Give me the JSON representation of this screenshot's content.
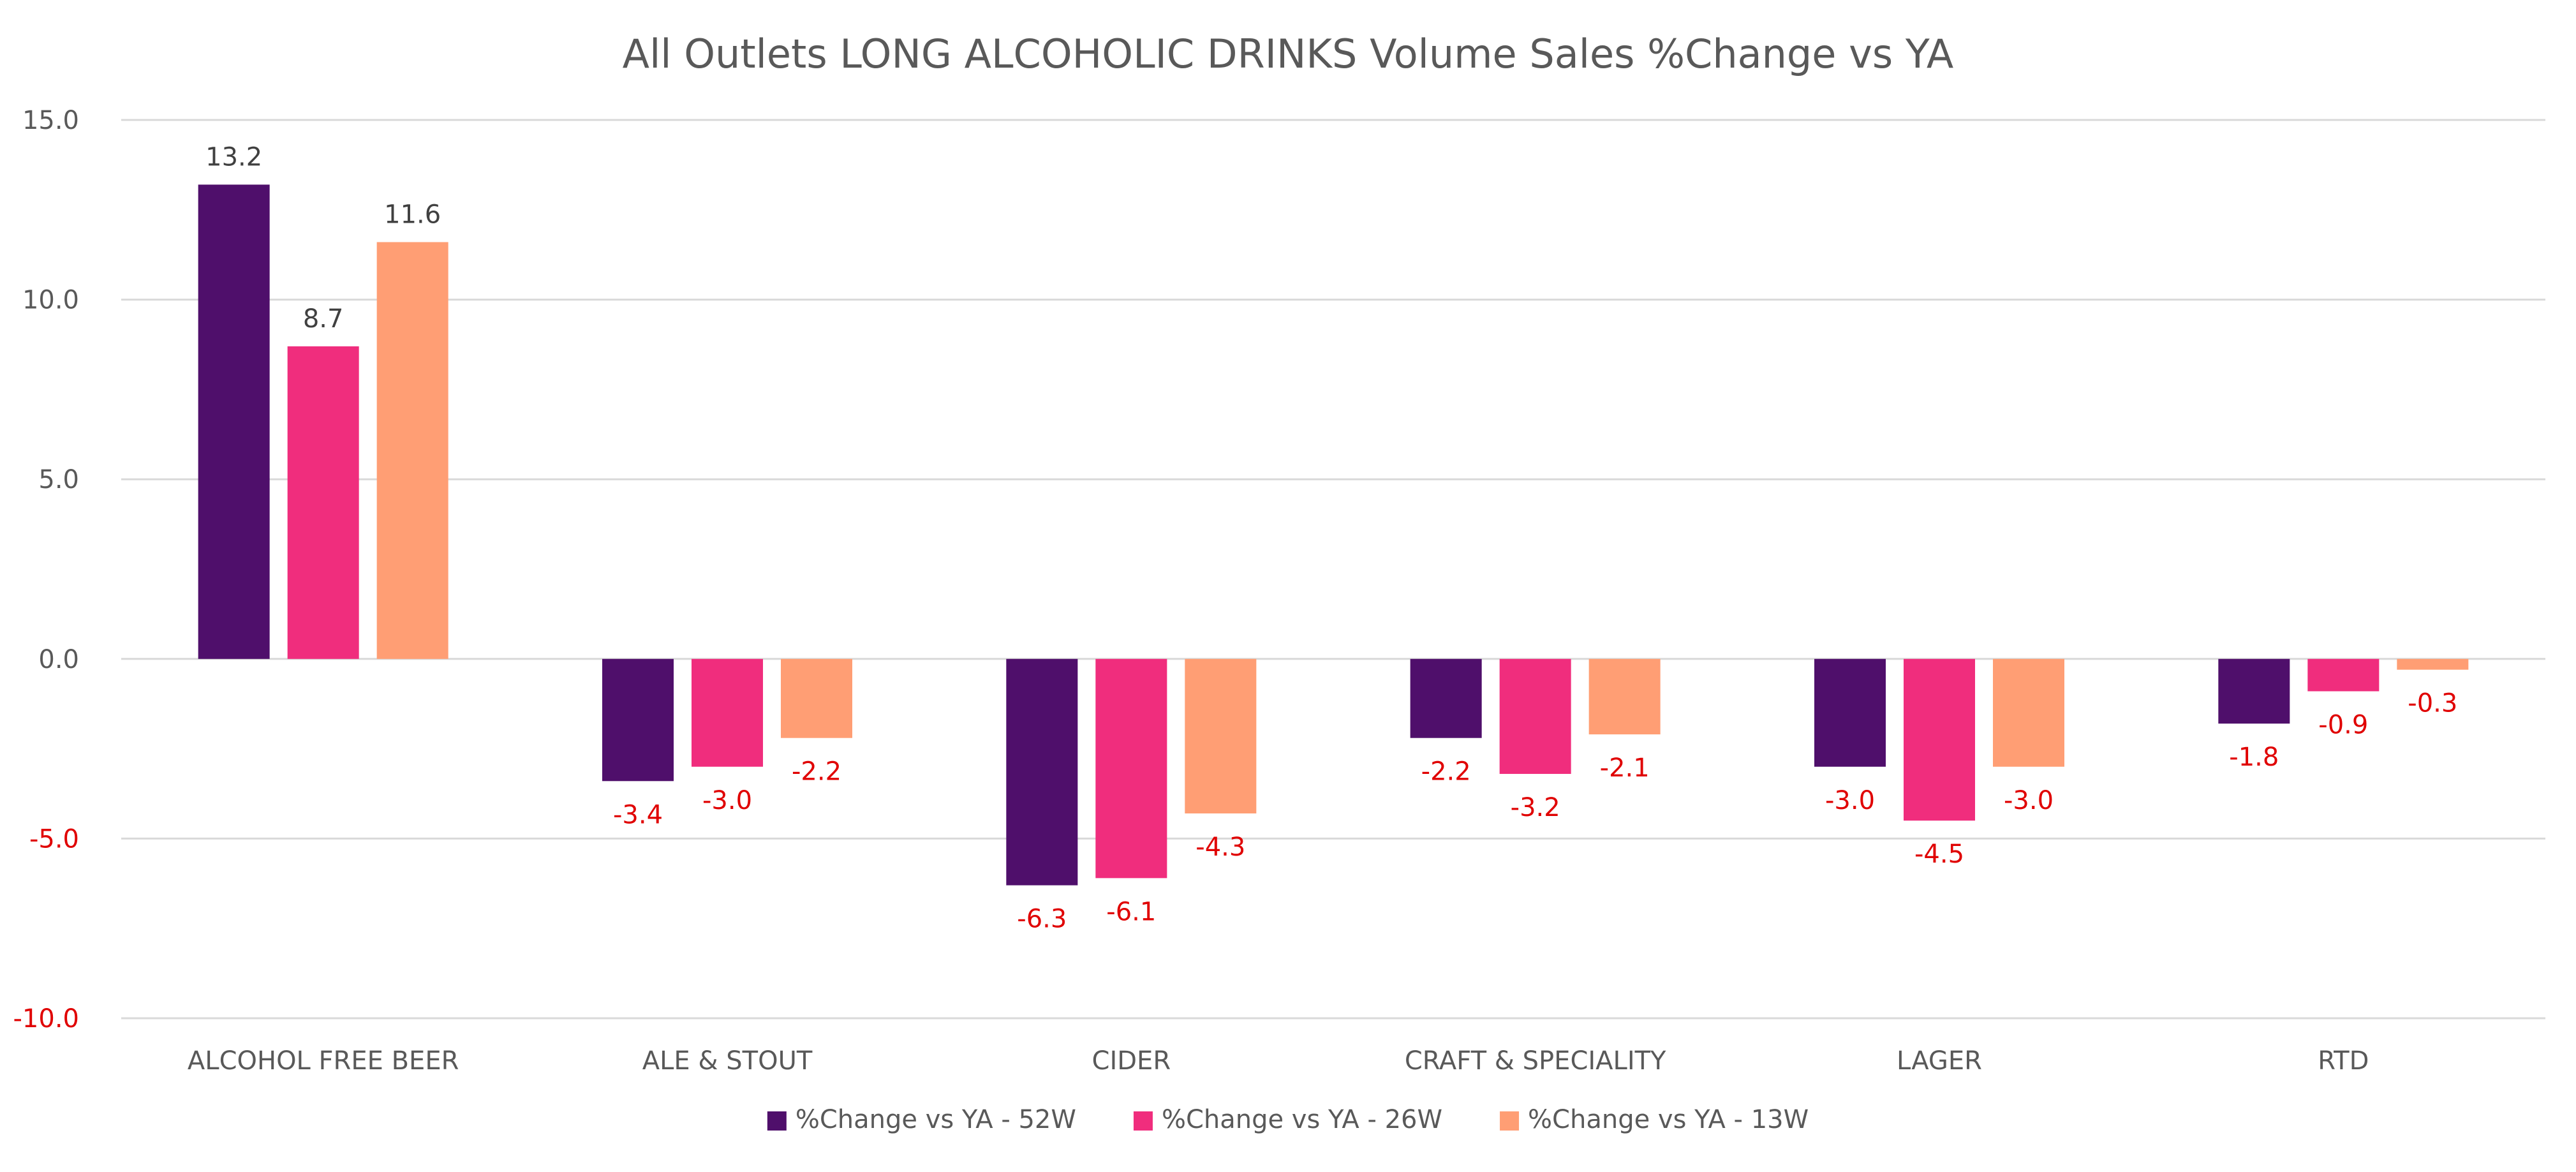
{
  "chart_data": {
    "type": "bar",
    "title": "All Outlets LONG ALCOHOLIC DRINKS Volume Sales %Change vs YA",
    "categories": [
      "ALCOHOL FREE BEER",
      "ALE & STOUT",
      "CIDER",
      "CRAFT & SPECIALITY",
      "LAGER",
      "RTD"
    ],
    "series": [
      {
        "name": "%Change vs YA -  52W",
        "color": "#4f0f6b",
        "values": [
          13.2,
          -3.4,
          -6.3,
          -2.2,
          -3.0,
          -1.8
        ]
      },
      {
        "name": "%Change vs YA -  26W",
        "color": "#f02d7d",
        "values": [
          8.7,
          -3.0,
          -6.1,
          -3.2,
          -4.5,
          -0.9
        ]
      },
      {
        "name": "%Change vs YA -  13W",
        "color": "#ff9e74",
        "values": [
          11.6,
          -2.2,
          -4.3,
          -2.1,
          -3.0,
          -0.3
        ]
      }
    ],
    "yticks": [
      "15.0",
      "10.0",
      "5.0",
      "0.0",
      "-5.0",
      "-10.0"
    ],
    "ylim": [
      -10,
      15
    ],
    "grid": true,
    "legend_position": "bottom",
    "positive_label_color": "#404040",
    "negative_label_color": "#e00000",
    "positive_tick_color": "#595959",
    "negative_tick_color": "#e00000"
  }
}
